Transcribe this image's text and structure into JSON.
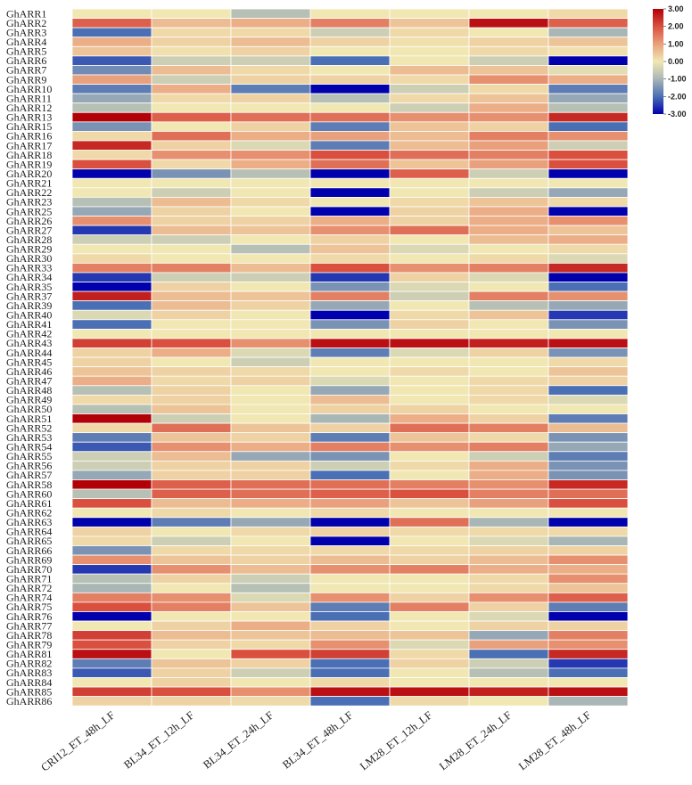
{
  "chart_data": {
    "type": "heatmap",
    "columns": [
      "CRI12_ET_48h_LF",
      "BL34_ET_12h_LF",
      "BL34_ET_24h_LF",
      "BL34_ET_48h_LF",
      "LM28_ET_12h_LF",
      "LM28_ET_24h_LF",
      "LM28_ET_48h_LF"
    ],
    "rows": [
      "GhARR1",
      "GhARR2",
      "GhARR3",
      "GhARR4",
      "GhARR5",
      "GhARR6",
      "GhARR7",
      "GhARR9",
      "GhARR10",
      "GhARR11",
      "GhARR12",
      "GhARR13",
      "GhARR15",
      "GhARR16",
      "GhARR17",
      "GhARR18",
      "GhARR19",
      "GhARR20",
      "GhARR21",
      "GhARR22",
      "GhARR23",
      "GhARR25",
      "GhARR26",
      "GhARR27",
      "GhARR28",
      "GhARR29",
      "GhARR30",
      "GhARR33",
      "GhARR34",
      "GhARR35",
      "GhARR37",
      "GhARR39",
      "GhARR40",
      "GhARR41",
      "GhARR42",
      "GhARR43",
      "GhARR44",
      "GhARR45",
      "GhARR46",
      "GhARR47",
      "GhARR48",
      "GhARR49",
      "GhARR50",
      "GhARR51",
      "GhARR52",
      "GhARR53",
      "GhARR54",
      "GhARR55",
      "GhARR56",
      "GhARR57",
      "GhARR58",
      "GhARR60",
      "GhARR61",
      "GhARR62",
      "GhARR63",
      "GhARR64",
      "GhARR65",
      "GhARR66",
      "GhARR69",
      "GhARR70",
      "GhARR71",
      "GhARR72",
      "GhARR74",
      "GhARR75",
      "GhARR76",
      "GhARR77",
      "GhARR78",
      "GhARR79",
      "GhARR81",
      "GhARR82",
      "GhARR83",
      "GhARR84",
      "GhARR85",
      "GhARR86"
    ],
    "values": [
      [
        0.0,
        0.0,
        -0.8,
        0.0,
        0.0,
        0.0,
        0.2
      ],
      [
        1.8,
        0.6,
        0.8,
        1.4,
        0.5,
        2.8,
        1.8
      ],
      [
        -2.0,
        0.2,
        0.2,
        -0.5,
        0.2,
        0.0,
        -1.0
      ],
      [
        0.8,
        0.3,
        0.6,
        0.3,
        0.1,
        0.3,
        0.5
      ],
      [
        0.5,
        0.1,
        0.3,
        0.0,
        0.0,
        0.2,
        0.1
      ],
      [
        -2.2,
        -0.5,
        -0.5,
        -2.0,
        0.0,
        -0.5,
        -3.0
      ],
      [
        -1.6,
        0.6,
        0.2,
        0.0,
        0.6,
        0.5,
        -0.2
      ],
      [
        1.0,
        -0.5,
        0.3,
        0.3,
        0.2,
        1.2,
        0.8
      ],
      [
        -1.8,
        0.8,
        -1.8,
        -3.0,
        -0.5,
        0.2,
        -1.8
      ],
      [
        -1.2,
        0.2,
        0.3,
        -0.8,
        0.2,
        0.5,
        -1.2
      ],
      [
        -0.8,
        0.0,
        0.0,
        0.0,
        -0.5,
        0.8,
        -0.8
      ],
      [
        3.0,
        1.8,
        1.6,
        1.6,
        1.2,
        1.2,
        2.5
      ],
      [
        -1.5,
        0.0,
        0.3,
        -1.8,
        0.5,
        0.3,
        -2.0
      ],
      [
        0.2,
        1.6,
        0.8,
        1.0,
        0.6,
        1.4,
        1.2
      ],
      [
        2.5,
        0.3,
        -0.3,
        -1.8,
        0.6,
        1.0,
        -0.5
      ],
      [
        0.2,
        1.2,
        1.2,
        2.0,
        1.6,
        1.4,
        2.0
      ],
      [
        2.0,
        0.2,
        0.8,
        1.6,
        0.5,
        1.0,
        2.0
      ],
      [
        -3.0,
        -1.5,
        -0.8,
        -3.0,
        1.8,
        -0.5,
        -3.0
      ],
      [
        0.0,
        0.0,
        0.0,
        0.0,
        0.0,
        0.0,
        0.0
      ],
      [
        0.0,
        -0.5,
        0.0,
        -3.0,
        0.0,
        -0.5,
        -1.2
      ],
      [
        -0.8,
        0.6,
        0.2,
        0.0,
        0.2,
        0.5,
        0.2
      ],
      [
        -1.2,
        0.3,
        0.0,
        -3.0,
        0.3,
        0.8,
        -3.0
      ],
      [
        1.2,
        0.3,
        0.3,
        0.8,
        0.3,
        0.8,
        1.2
      ],
      [
        -2.5,
        0.6,
        0.5,
        1.2,
        1.6,
        0.8,
        0.5
      ],
      [
        -0.5,
        -0.5,
        0.0,
        0.3,
        0.0,
        0.6,
        0.8
      ],
      [
        0.0,
        0.0,
        -0.8,
        0.5,
        -0.3,
        0.0,
        0.2
      ],
      [
        0.2,
        0.0,
        0.0,
        0.2,
        0.0,
        0.2,
        -0.3
      ],
      [
        1.4,
        1.4,
        0.6,
        2.0,
        1.2,
        1.4,
        2.5
      ],
      [
        -2.5,
        -0.5,
        -0.5,
        -2.5,
        0.3,
        -0.3,
        -3.0
      ],
      [
        -3.0,
        0.3,
        0.0,
        -1.5,
        -0.3,
        0.0,
        -2.0
      ],
      [
        2.6,
        0.6,
        0.5,
        1.4,
        -0.5,
        1.4,
        1.2
      ],
      [
        -2.0,
        0.6,
        0.3,
        -1.2,
        0.0,
        -0.8,
        -1.2
      ],
      [
        -0.3,
        0.3,
        0.0,
        -3.0,
        0.2,
        0.5,
        -2.5
      ],
      [
        -2.0,
        0.0,
        0.0,
        -1.5,
        0.3,
        0.0,
        -1.5
      ],
      [
        0.0,
        0.0,
        0.0,
        0.0,
        0.0,
        0.0,
        0.0
      ],
      [
        2.2,
        2.0,
        1.2,
        2.8,
        2.8,
        2.6,
        2.8
      ],
      [
        0.3,
        0.8,
        -0.3,
        -1.8,
        -0.3,
        0.3,
        -1.5
      ],
      [
        0.3,
        0.0,
        -0.5,
        0.0,
        0.0,
        0.0,
        0.2
      ],
      [
        0.5,
        0.3,
        0.2,
        0.0,
        0.2,
        0.0,
        0.5
      ],
      [
        0.8,
        0.2,
        0.3,
        -0.3,
        0.0,
        0.2,
        0.3
      ],
      [
        -0.8,
        0.3,
        0.0,
        -1.2,
        0.0,
        0.2,
        -2.0
      ],
      [
        0.2,
        0.3,
        0.0,
        0.6,
        0.0,
        0.2,
        -0.3
      ],
      [
        -0.8,
        0.5,
        0.0,
        0.3,
        0.3,
        0.0,
        0.0
      ],
      [
        3.0,
        -0.5,
        0.0,
        -1.0,
        0.8,
        0.3,
        -1.8
      ],
      [
        0.2,
        1.6,
        0.5,
        0.3,
        1.6,
        1.4,
        0.6
      ],
      [
        -1.8,
        0.5,
        0.3,
        -1.8,
        0.5,
        0.2,
        -1.5
      ],
      [
        -2.2,
        1.2,
        0.8,
        1.4,
        1.2,
        1.4,
        -1.2
      ],
      [
        -0.5,
        0.6,
        -1.2,
        -1.5,
        0.0,
        -0.5,
        -1.8
      ],
      [
        -0.5,
        0.3,
        0.3,
        -0.5,
        0.2,
        0.8,
        -1.5
      ],
      [
        -1.2,
        0.3,
        0.3,
        -2.0,
        0.0,
        0.8,
        -1.5
      ],
      [
        3.0,
        1.8,
        1.6,
        1.6,
        1.4,
        1.2,
        2.5
      ],
      [
        -0.8,
        1.8,
        1.6,
        1.8,
        2.0,
        1.4,
        1.6
      ],
      [
        2.0,
        0.6,
        0.8,
        1.0,
        0.5,
        1.0,
        2.0
      ],
      [
        0.0,
        0.2,
        0.0,
        0.2,
        0.0,
        0.0,
        0.0
      ],
      [
        -3.0,
        -1.8,
        -1.2,
        -3.0,
        1.6,
        -1.0,
        -3.0
      ],
      [
        0.3,
        0.0,
        0.2,
        0.3,
        0.2,
        0.2,
        0.2
      ],
      [
        0.2,
        -0.5,
        0.0,
        -3.0,
        0.0,
        -0.3,
        -1.0
      ],
      [
        -1.5,
        0.2,
        0.2,
        0.2,
        0.2,
        0.3,
        0.3
      ],
      [
        1.2,
        0.5,
        0.3,
        0.6,
        0.3,
        0.6,
        1.2
      ],
      [
        -2.5,
        1.2,
        0.6,
        1.2,
        1.4,
        0.8,
        0.8
      ],
      [
        -0.8,
        0.3,
        -0.5,
        0.0,
        0.0,
        0.2,
        1.2
      ],
      [
        -1.0,
        0.0,
        -0.8,
        0.0,
        0.0,
        0.2,
        0.5
      ],
      [
        1.4,
        1.2,
        -0.3,
        1.2,
        0.3,
        1.2,
        1.8
      ],
      [
        2.0,
        1.4,
        0.5,
        -1.8,
        1.4,
        0.3,
        -1.8
      ],
      [
        -3.0,
        0.0,
        0.0,
        -2.0,
        0.0,
        -0.3,
        -3.0
      ],
      [
        0.0,
        0.3,
        0.8,
        0.3,
        0.0,
        0.3,
        0.3
      ],
      [
        2.2,
        0.6,
        0.5,
        0.6,
        0.5,
        -1.2,
        1.4
      ],
      [
        2.0,
        0.3,
        0.2,
        1.2,
        -0.3,
        1.0,
        1.2
      ],
      [
        2.8,
        0.0,
        2.0,
        2.2,
        0.2,
        -2.0,
        2.5
      ],
      [
        -1.8,
        0.5,
        0.3,
        -2.0,
        0.3,
        -0.5,
        -2.5
      ],
      [
        -2.2,
        0.3,
        -0.5,
        -2.0,
        0.0,
        -0.8,
        -2.0
      ],
      [
        0.0,
        0.3,
        0.0,
        0.2,
        0.0,
        0.0,
        0.0
      ],
      [
        2.2,
        2.0,
        1.2,
        2.8,
        2.8,
        2.6,
        2.8
      ],
      [
        0.3,
        0.3,
        0.2,
        -2.0,
        0.2,
        0.0,
        -1.0
      ]
    ],
    "colorbar": {
      "min": -3.0,
      "max": 3.0,
      "ticks": [
        "3.00",
        "2.00",
        "1.00",
        "0.00",
        "-1.00",
        "-2.00",
        "-3.00"
      ],
      "colors": [
        "#0000ad",
        "#4a6fb4",
        "#a9b6b6",
        "#f1e7b3",
        "#e9a07c",
        "#d9503f",
        "#b20008"
      ]
    }
  }
}
